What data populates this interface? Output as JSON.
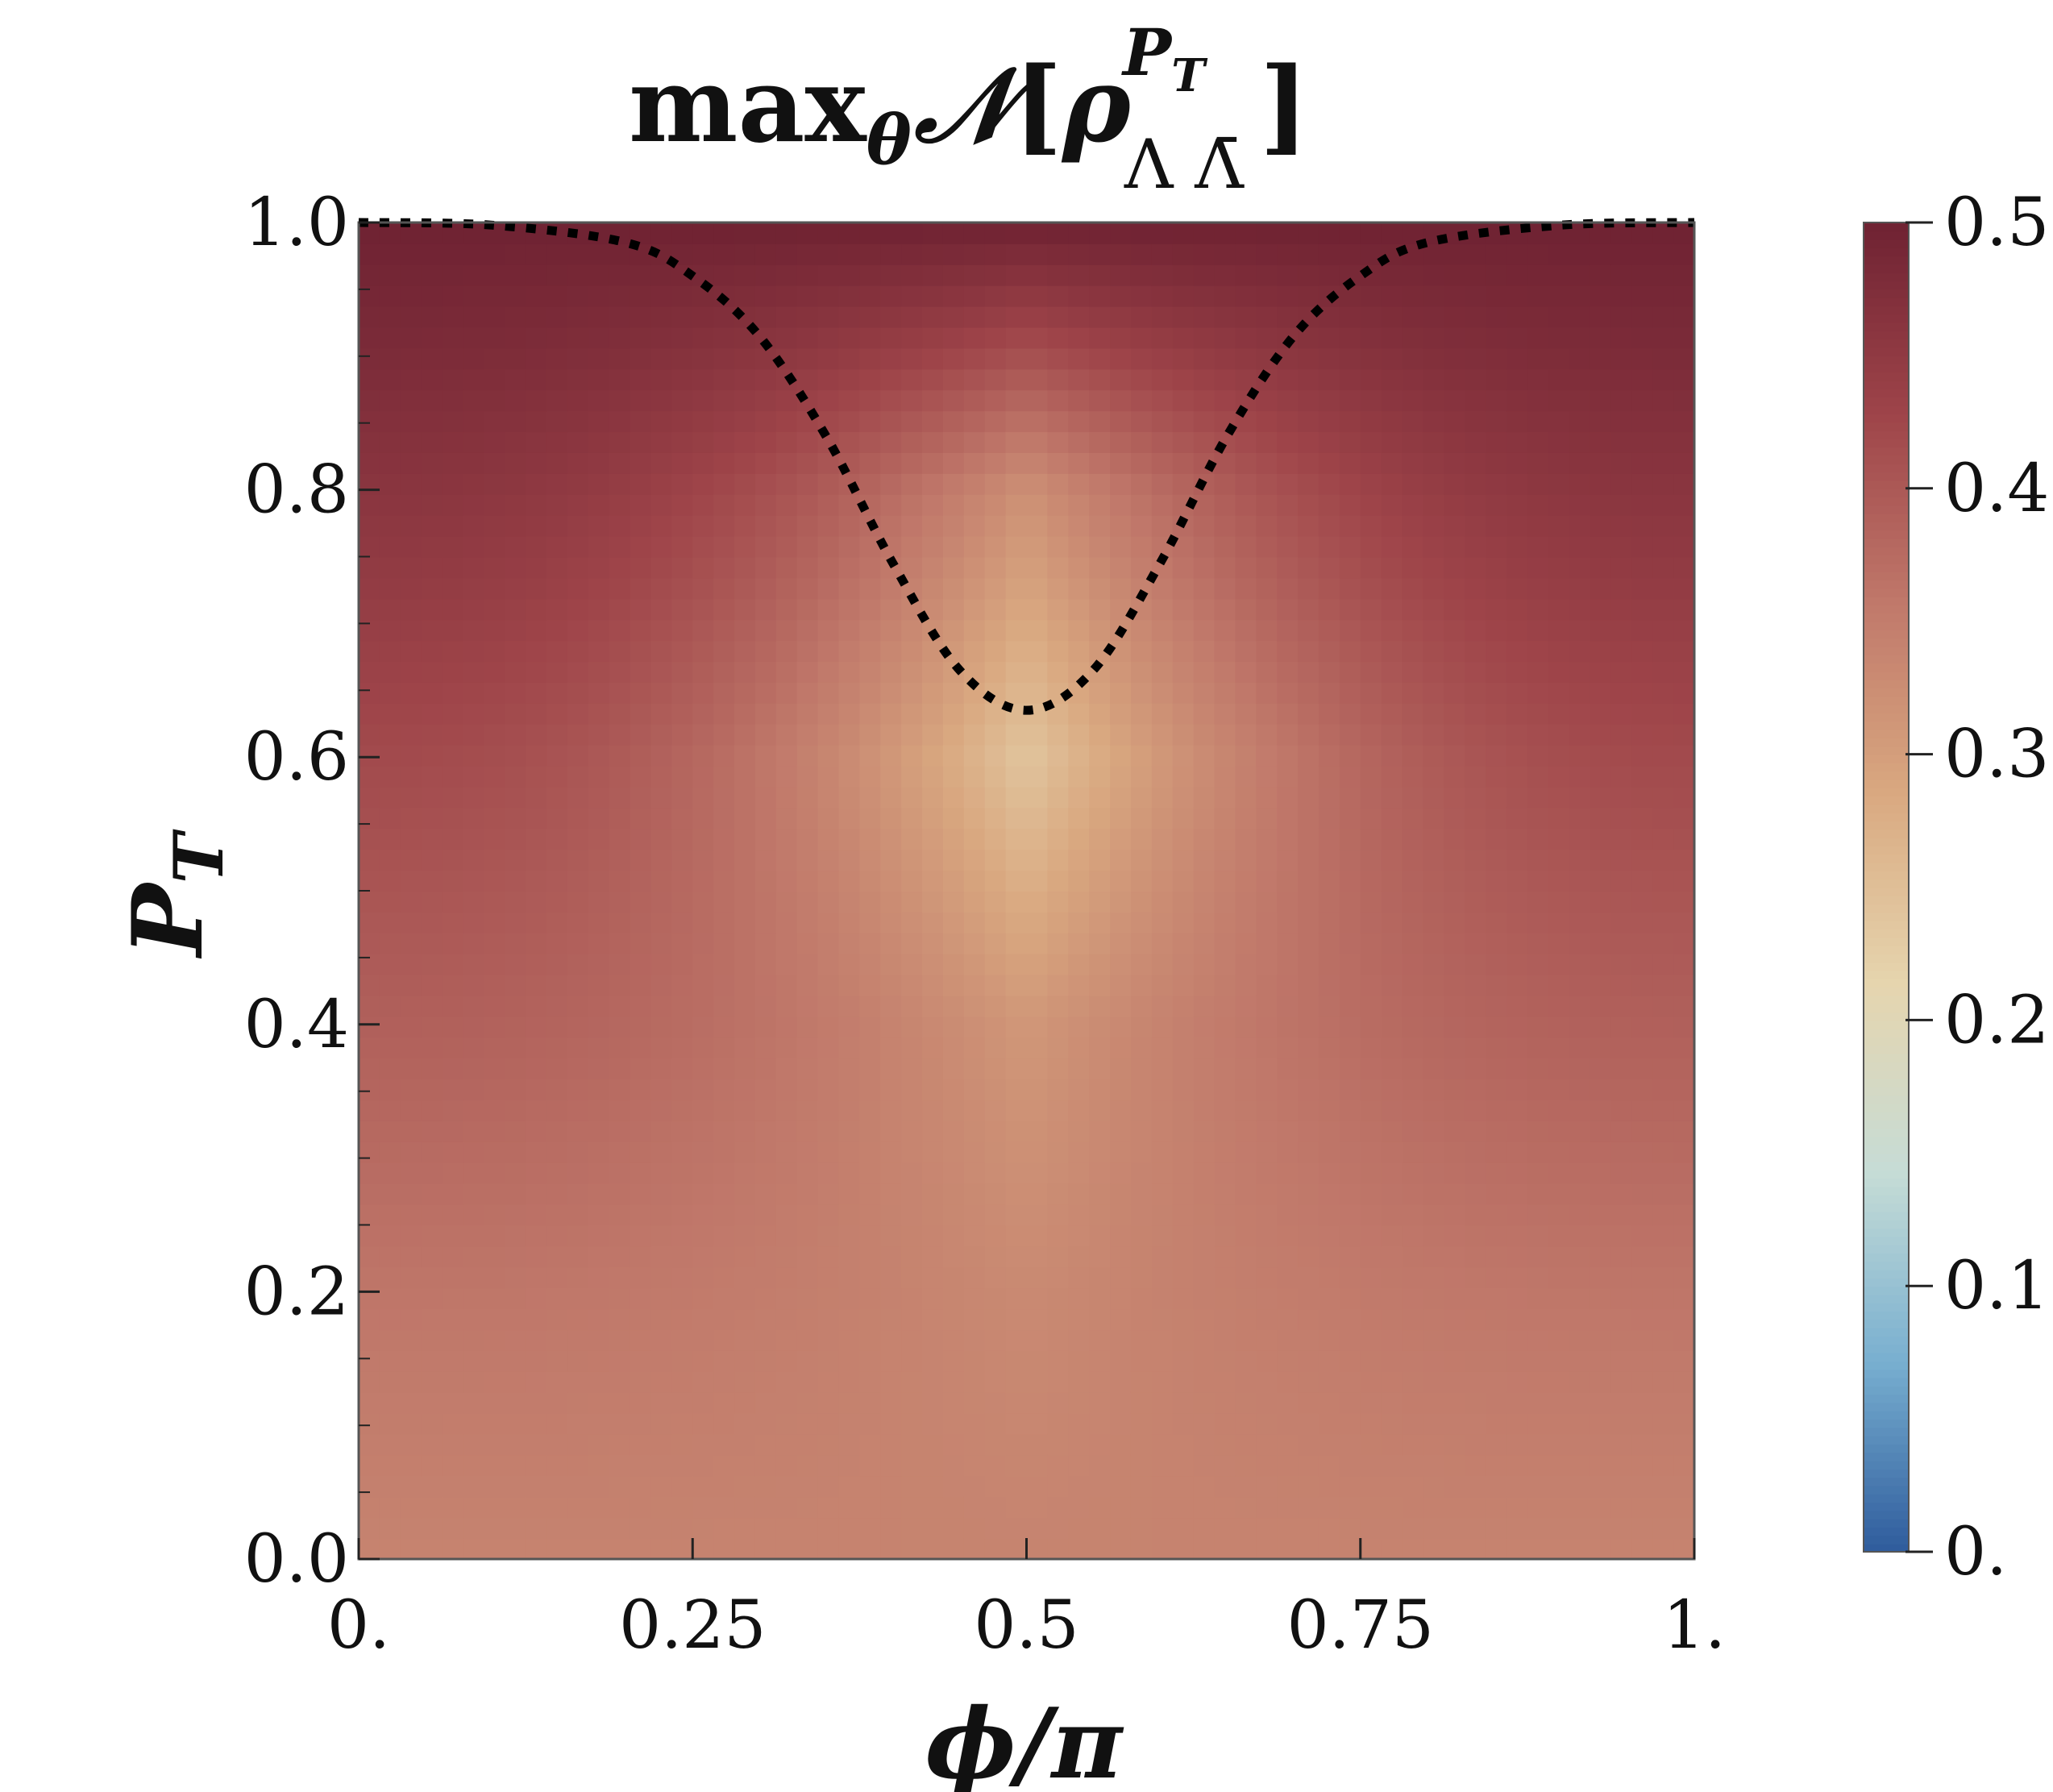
{
  "chart_data": {
    "type": "heatmap",
    "title": {
      "prefix": "max",
      "prefix_sub": "θ",
      "operator": "𝒩",
      "open": "[",
      "symbol": "ρ",
      "superscript": "P",
      "superscript_sub": "T",
      "subscript": "Λ Λ̄",
      "close": "]"
    },
    "xlabel": "ϕ/π",
    "ylabel": {
      "main": "P",
      "sub": "T"
    },
    "xlim": [
      0,
      1
    ],
    "ylim": [
      0,
      1
    ],
    "x_ticks": [
      0,
      0.25,
      0.5,
      0.75,
      1
    ],
    "x_tick_labels": [
      "0.",
      "0.25",
      "0.5",
      "0.75",
      "1."
    ],
    "y_ticks": [
      0,
      0.2,
      0.4,
      0.6,
      0.8,
      1.0
    ],
    "y_tick_labels": [
      "0.0",
      "0.2",
      "0.4",
      "0.6",
      "0.8",
      "1.0"
    ],
    "colorbar": {
      "range": [
        0,
        0.5
      ],
      "ticks": [
        0,
        0.1,
        0.2,
        0.3,
        0.4,
        0.5
      ],
      "tick_labels": [
        "0.",
        "0.1",
        "0.2",
        "0.3",
        "0.4",
        "0.5"
      ],
      "colormap": [
        "#2e5b9c",
        "#78afd0",
        "#c6dcd6",
        "#e6d5ae",
        "#d9a880",
        "#c0786a",
        "#9e4449",
        "#6f2232"
      ]
    },
    "field_samples": {
      "x": [
        0,
        0.25,
        0.5,
        0.75,
        1
      ],
      "y": [
        0,
        0.2,
        0.4,
        0.6,
        0.8,
        1.0
      ],
      "value_at_x_edge": [
        0.34,
        0.36,
        0.39,
        0.42,
        0.46,
        0.5
      ],
      "value_at_x_center": [
        0.34,
        0.33,
        0.31,
        0.24,
        0.32,
        0.5
      ]
    },
    "boundary_curve": {
      "style": "dotted",
      "color": "#000000",
      "x": [
        0,
        0.1,
        0.2,
        0.25,
        0.3,
        0.35,
        0.4,
        0.45,
        0.5,
        0.55,
        0.6,
        0.65,
        0.7,
        0.75,
        0.8,
        0.9,
        1
      ],
      "y": [
        1.0,
        0.998,
        0.985,
        0.96,
        0.915,
        0.84,
        0.745,
        0.665,
        0.635,
        0.665,
        0.745,
        0.84,
        0.915,
        0.96,
        0.985,
        0.998,
        1.0
      ]
    }
  }
}
